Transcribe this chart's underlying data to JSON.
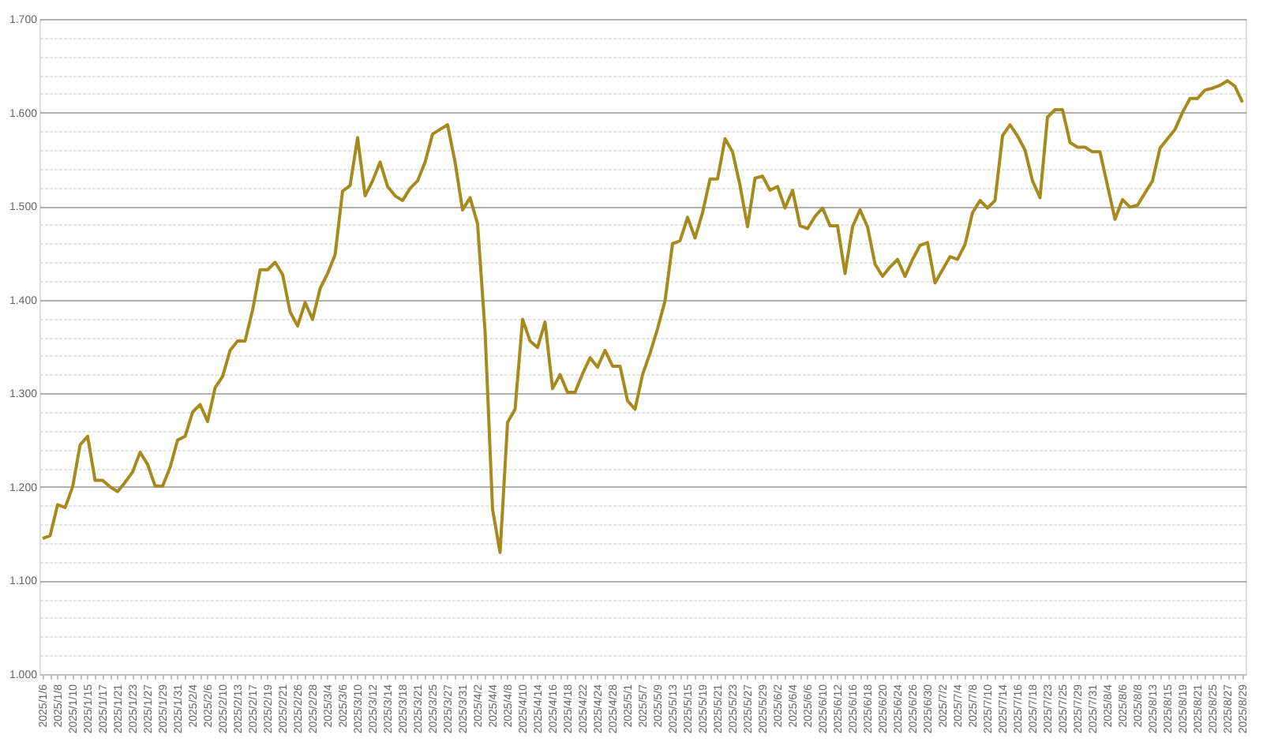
{
  "chart_data": {
    "type": "line",
    "categories": [
      "2025/1/6",
      null,
      "2025/1/8",
      null,
      "2025/1/10",
      null,
      "2025/1/15",
      null,
      "2025/1/17",
      null,
      "2025/1/21",
      null,
      "2025/1/23",
      null,
      "2025/1/27",
      null,
      "2025/1/29",
      null,
      "2025/1/31",
      null,
      "2025/2/4",
      null,
      "2025/2/6",
      null,
      "2025/2/10",
      null,
      "2025/2/13",
      null,
      "2025/2/17",
      null,
      "2025/2/19",
      null,
      "2025/2/21",
      null,
      "2025/2/26",
      null,
      "2025/2/28",
      null,
      "2025/3/4",
      null,
      "2025/3/6",
      null,
      "2025/3/10",
      null,
      "2025/3/12",
      null,
      "2025/3/14",
      null,
      "2025/3/18",
      null,
      "2025/3/21",
      null,
      "2025/3/25",
      null,
      "2025/3/27",
      null,
      "2025/3/31",
      null,
      "2025/4/2",
      null,
      "2025/4/4",
      null,
      "2025/4/8",
      null,
      "2025/4/10",
      null,
      "2025/4/14",
      null,
      "2025/4/16",
      null,
      "2025/4/18",
      null,
      "2025/4/22",
      null,
      "2025/4/24",
      null,
      "2025/4/28",
      null,
      "2025/5/1",
      null,
      "2025/5/7",
      null,
      "2025/5/9",
      null,
      "2025/5/13",
      null,
      "2025/5/15",
      null,
      "2025/5/19",
      null,
      "2025/5/21",
      null,
      "2025/5/23",
      null,
      "2025/5/27",
      null,
      "2025/5/29",
      null,
      "2025/6/2",
      null,
      "2025/6/4",
      null,
      "2025/6/6",
      null,
      "2025/6/10",
      null,
      "2025/6/12",
      null,
      "2025/6/16",
      null,
      "2025/6/18",
      null,
      "2025/6/20",
      null,
      "2025/6/24",
      null,
      "2025/6/26",
      null,
      "2025/6/30",
      null,
      "2025/7/2",
      null,
      "2025/7/4",
      null,
      "2025/7/8",
      null,
      "2025/7/10",
      null,
      "2025/7/14",
      null,
      "2025/7/16",
      null,
      "2025/7/18",
      null,
      "2025/7/23",
      null,
      "2025/7/25",
      null,
      "2025/7/29",
      null,
      "2025/7/31",
      null,
      "2025/8/4",
      null,
      "2025/8/6",
      null,
      "2025/8/8",
      null,
      "2025/8/13",
      null,
      "2025/8/15",
      null,
      "2025/8/19",
      null,
      "2025/8/21",
      null,
      "2025/8/25",
      null,
      "2025/8/27",
      null,
      "2025/8/29"
    ],
    "series": [
      {
        "color": "#a68a1e",
        "values": [
          1.145,
          1.148,
          1.181,
          1.178,
          1.2,
          1.245,
          1.254,
          1.207,
          1.207,
          1.2,
          1.195,
          1.205,
          1.216,
          1.237,
          1.224,
          1.201,
          1.201,
          1.221,
          1.25,
          1.254,
          1.28,
          1.288,
          1.27,
          1.306,
          1.318,
          1.346,
          1.356,
          1.356,
          1.389,
          1.432,
          1.432,
          1.44,
          1.427,
          1.387,
          1.372,
          1.397,
          1.379,
          1.412,
          1.428,
          1.448,
          1.516,
          1.522,
          1.573,
          1.511,
          1.527,
          1.547,
          1.521,
          1.511,
          1.506,
          1.519,
          1.527,
          1.547,
          1.577,
          1.582,
          1.587,
          1.547,
          1.496,
          1.509,
          1.481,
          1.366,
          1.176,
          1.13,
          1.269,
          1.283,
          1.379,
          1.356,
          1.349,
          1.376,
          1.305,
          1.32,
          1.301,
          1.301,
          1.321,
          1.338,
          1.328,
          1.346,
          1.329,
          1.329,
          1.292,
          1.283,
          1.32,
          1.343,
          1.369,
          1.399,
          1.46,
          1.463,
          1.488,
          1.466,
          1.493,
          1.529,
          1.529,
          1.572,
          1.558,
          1.522,
          1.478,
          1.53,
          1.532,
          1.517,
          1.521,
          1.498,
          1.517,
          1.479,
          1.476,
          1.489,
          1.498,
          1.479,
          1.479,
          1.428,
          1.478,
          1.496,
          1.478,
          1.438,
          1.425,
          1.435,
          1.443,
          1.425,
          1.443,
          1.458,
          1.461,
          1.418,
          1.432,
          1.446,
          1.443,
          1.459,
          1.493,
          1.506,
          1.498,
          1.506,
          1.575,
          1.587,
          1.575,
          1.56,
          1.527,
          1.509,
          1.595,
          1.603,
          1.603,
          1.568,
          1.563,
          1.563,
          1.558,
          1.558,
          1.522,
          1.486,
          1.507,
          1.499,
          1.501,
          1.514,
          1.527,
          1.562,
          1.572,
          1.582,
          1.6,
          1.615,
          1.615,
          1.624,
          1.626,
          1.629,
          1.634,
          1.628,
          1.611
        ]
      }
    ],
    "ylim": [
      1.0,
      1.7
    ],
    "yticks": [
      {
        "value": 1.0,
        "label": "1.000"
      },
      {
        "value": 1.02,
        "label": null
      },
      {
        "value": 1.04,
        "label": null
      },
      {
        "value": 1.06,
        "label": null
      },
      {
        "value": 1.08,
        "label": null
      },
      {
        "value": 1.1,
        "label": "1.100"
      },
      {
        "value": 1.12,
        "label": null
      },
      {
        "value": 1.14,
        "label": null
      },
      {
        "value": 1.16,
        "label": null
      },
      {
        "value": 1.18,
        "label": null
      },
      {
        "value": 1.2,
        "label": "1.200"
      },
      {
        "value": 1.22,
        "label": null
      },
      {
        "value": 1.24,
        "label": null
      },
      {
        "value": 1.26,
        "label": null
      },
      {
        "value": 1.28,
        "label": null
      },
      {
        "value": 1.3,
        "label": "1.300"
      },
      {
        "value": 1.32,
        "label": null
      },
      {
        "value": 1.34,
        "label": null
      },
      {
        "value": 1.36,
        "label": null
      },
      {
        "value": 1.38,
        "label": null
      },
      {
        "value": 1.4,
        "label": "1.400"
      },
      {
        "value": 1.42,
        "label": null
      },
      {
        "value": 1.44,
        "label": null
      },
      {
        "value": 1.46,
        "label": null
      },
      {
        "value": 1.48,
        "label": null
      },
      {
        "value": 1.5,
        "label": "1.500"
      },
      {
        "value": 1.52,
        "label": null
      },
      {
        "value": 1.54,
        "label": null
      },
      {
        "value": 1.56,
        "label": null
      },
      {
        "value": 1.58,
        "label": null
      },
      {
        "value": 1.6,
        "label": "1.600"
      },
      {
        "value": 1.62,
        "label": null
      },
      {
        "value": 1.64,
        "label": null
      },
      {
        "value": 1.66,
        "label": null
      },
      {
        "value": 1.68,
        "label": null
      },
      {
        "value": 1.7,
        "label": "1.700"
      }
    ],
    "grid": "y",
    "line_style": "solid",
    "marker": "none"
  }
}
